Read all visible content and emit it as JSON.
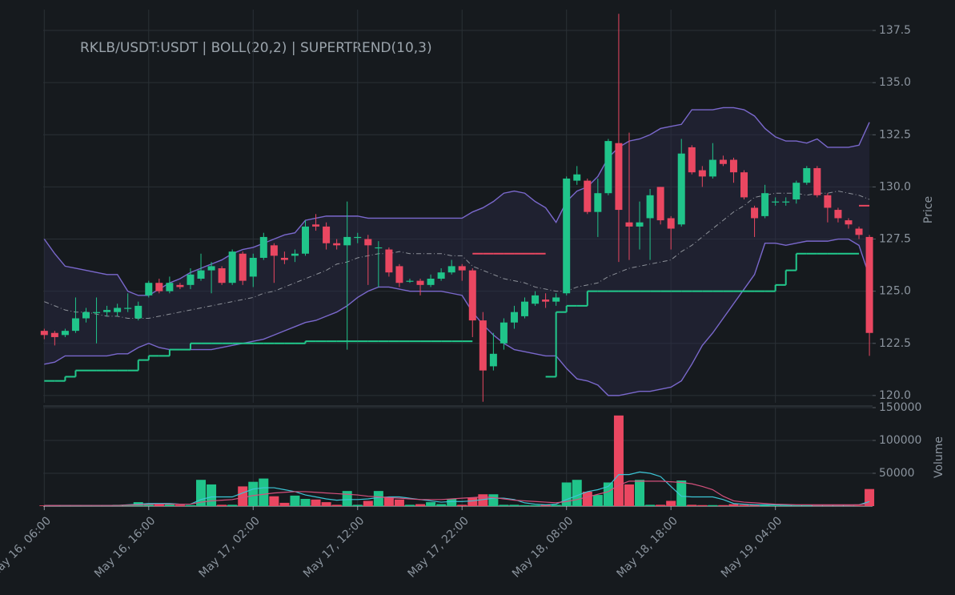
{
  "chart_data": {
    "type": "candlestick",
    "title": "RKLB/USDT:USDT | BOLL(20,2) | SUPERTREND(10,3)",
    "ylabel": "Price",
    "xlim": [
      -0.1,
      79.3
    ],
    "xticks": [
      {
        "value": 0,
        "label": "May 16, 06:00"
      },
      {
        "value": 10,
        "label": "May 16, 16:00"
      },
      {
        "value": 20,
        "label": "May 17, 02:00"
      },
      {
        "value": 30,
        "label": "May 17, 12:00"
      },
      {
        "value": 40,
        "label": "May 17, 22:00"
      },
      {
        "value": 50,
        "label": "May 18, 08:00"
      },
      {
        "value": 60,
        "label": "May 18, 18:00"
      },
      {
        "value": 70,
        "label": "May 19, 04:00"
      }
    ],
    "ylim": [
      119.65,
      138.5
    ],
    "yticks": [
      {
        "value": 120,
        "label": "120.0"
      },
      122.5,
      {
        "value": 125,
        "label": "125.0"
      },
      127.5,
      {
        "value": 130,
        "label": "130.0"
      },
      132.5,
      {
        "value": 135,
        "label": "135.0"
      },
      137.5
    ],
    "grid": true,
    "up_color": "#20c48a",
    "down_color": "#ea4761",
    "open": [
      123.1,
      123.0,
      122.9,
      123.1,
      123.7,
      124.0,
      124.0,
      124.0,
      124.2,
      123.7,
      124.8,
      125.4,
      125.0,
      125.3,
      125.3,
      125.6,
      126.0,
      126.1,
      125.4,
      126.8,
      125.7,
      126.6,
      127.2,
      126.6,
      126.7,
      126.8,
      128.2,
      128.1,
      127.3,
      127.2,
      127.6,
      127.5,
      127.1,
      127.0,
      126.2,
      125.5,
      125.5,
      125.3,
      125.6,
      125.9,
      126.2,
      126.0,
      123.6,
      121.4,
      122.5,
      123.5,
      123.8,
      124.4,
      124.6,
      124.5,
      124.9,
      130.3,
      130.3,
      128.8,
      129.7,
      132.1,
      128.3,
      128.1,
      128.5,
      130.0,
      128.5,
      128.2,
      131.9,
      130.8,
      130.5,
      131.3,
      131.3,
      130.7,
      129.0,
      128.6,
      129.3,
      129.3,
      129.4,
      130.2,
      130.9,
      129.6,
      128.9,
      128.4,
      128.0,
      127.6
    ],
    "close": [
      122.9,
      122.8,
      123.1,
      123.7,
      124.0,
      124.0,
      124.1,
      124.2,
      124.2,
      124.3,
      125.4,
      125.0,
      125.4,
      125.2,
      125.8,
      126.0,
      126.2,
      125.4,
      126.9,
      125.5,
      126.6,
      127.6,
      126.7,
      126.5,
      126.8,
      128.1,
      128.1,
      127.3,
      127.2,
      127.6,
      127.6,
      127.2,
      127.1,
      125.9,
      125.4,
      125.5,
      125.3,
      125.6,
      125.9,
      126.2,
      126.0,
      123.6,
      121.2,
      122.0,
      123.5,
      124.0,
      124.5,
      124.8,
      124.5,
      124.7,
      130.4,
      130.6,
      128.8,
      129.7,
      132.2,
      128.9,
      128.1,
      128.3,
      129.6,
      128.4,
      128.0,
      131.6,
      130.7,
      130.5,
      131.3,
      131.1,
      130.7,
      129.5,
      128.5,
      129.7,
      129.3,
      129.3,
      130.2,
      130.9,
      129.6,
      129.0,
      128.5,
      128.2,
      127.7,
      123.0
    ],
    "high": [
      123.2,
      123.1,
      123.2,
      124.7,
      124.2,
      124.7,
      124.3,
      124.4,
      124.9,
      124.5,
      125.5,
      125.6,
      125.7,
      125.4,
      126.1,
      126.8,
      126.4,
      126.2,
      127.0,
      126.9,
      126.8,
      127.8,
      127.3,
      126.9,
      127.0,
      128.4,
      128.7,
      128.3,
      127.5,
      129.3,
      127.8,
      127.7,
      127.4,
      127.1,
      126.3,
      125.6,
      125.6,
      125.8,
      126.1,
      126.5,
      126.3,
      126.1,
      124.0,
      123.0,
      123.7,
      124.3,
      124.7,
      125.0,
      124.9,
      124.9,
      130.5,
      131.0,
      130.4,
      130.4,
      132.3,
      138.3,
      132.6,
      129.3,
      129.9,
      130.0,
      128.6,
      132.3,
      132.0,
      131.0,
      132.1,
      131.5,
      131.4,
      130.8,
      129.1,
      130.1,
      129.5,
      129.5,
      130.3,
      131.0,
      131.0,
      129.7,
      129.0,
      128.5,
      128.1,
      127.7
    ],
    "low": [
      122.7,
      122.4,
      122.8,
      123.0,
      123.5,
      122.5,
      123.8,
      123.8,
      124.0,
      123.6,
      124.7,
      124.9,
      124.9,
      125.1,
      125.1,
      125.5,
      124.9,
      125.3,
      125.3,
      125.3,
      125.2,
      126.5,
      125.4,
      126.3,
      126.4,
      126.7,
      127.9,
      127.0,
      127.0,
      122.2,
      127.3,
      125.3,
      125.2,
      125.7,
      125.2,
      125.4,
      124.8,
      125.2,
      125.5,
      125.8,
      125.5,
      122.8,
      119.7,
      121.2,
      122.2,
      123.2,
      123.7,
      124.3,
      124.2,
      124.3,
      124.8,
      130.1,
      128.7,
      127.6,
      129.6,
      126.4,
      126.5,
      127.0,
      126.5,
      128.2,
      127.0,
      128.1,
      130.6,
      130.0,
      130.4,
      131.0,
      130.2,
      129.4,
      127.6,
      128.5,
      129.1,
      129.1,
      129.2,
      130.1,
      129.5,
      128.3,
      128.3,
      128.0,
      127.5,
      121.9
    ],
    "bollinger": {
      "color": "#7a68cc",
      "middle_color": "#8c9098",
      "fill": "#2a2a48",
      "upper": [
        127.5,
        126.8,
        126.2,
        126.1,
        126.0,
        125.9,
        125.8,
        125.8,
        125.0,
        124.8,
        124.8,
        125.1,
        125.4,
        125.6,
        125.9,
        126.1,
        126.3,
        126.5,
        126.8,
        127.0,
        127.1,
        127.3,
        127.5,
        127.7,
        127.8,
        128.4,
        128.5,
        128.6,
        128.6,
        128.6,
        128.6,
        128.5,
        128.5,
        128.5,
        128.5,
        128.5,
        128.5,
        128.5,
        128.5,
        128.5,
        128.5,
        128.8,
        129.0,
        129.3,
        129.7,
        129.8,
        129.7,
        129.3,
        129.0,
        128.3,
        129.3,
        129.8,
        130.0,
        130.5,
        131.4,
        131.9,
        132.2,
        132.3,
        132.5,
        132.8,
        132.9,
        133.0,
        133.7,
        133.7,
        133.7,
        133.8,
        133.8,
        133.7,
        133.4,
        132.8,
        132.4,
        132.2,
        132.2,
        132.1,
        132.3,
        131.9,
        131.9,
        131.9,
        132.0,
        133.1
      ],
      "middle": [
        124.5,
        124.3,
        124.1,
        124.0,
        124.0,
        123.9,
        123.8,
        123.8,
        123.7,
        123.7,
        123.7,
        123.8,
        123.9,
        124.0,
        124.1,
        124.2,
        124.3,
        124.4,
        124.5,
        124.6,
        124.7,
        124.9,
        125.0,
        125.2,
        125.4,
        125.6,
        125.8,
        126.0,
        126.3,
        126.4,
        126.6,
        126.7,
        126.8,
        126.8,
        126.9,
        126.8,
        126.8,
        126.8,
        126.8,
        126.7,
        126.7,
        126.2,
        126.0,
        125.8,
        125.6,
        125.5,
        125.4,
        125.2,
        125.1,
        125.0,
        125.0,
        125.2,
        125.3,
        125.4,
        125.7,
        125.9,
        126.1,
        126.2,
        126.3,
        126.4,
        126.5,
        126.9,
        127.2,
        127.6,
        128.0,
        128.4,
        128.8,
        129.1,
        129.5,
        129.6,
        129.7,
        129.7,
        129.7,
        129.6,
        129.7,
        129.7,
        129.8,
        129.7,
        129.6,
        129.4
      ],
      "lower": [
        121.5,
        121.6,
        121.9,
        121.9,
        121.9,
        121.9,
        121.9,
        122.0,
        122.0,
        122.3,
        122.5,
        122.3,
        122.2,
        122.2,
        122.2,
        122.2,
        122.2,
        122.3,
        122.4,
        122.5,
        122.6,
        122.7,
        122.9,
        123.1,
        123.3,
        123.5,
        123.6,
        123.8,
        124.0,
        124.3,
        124.7,
        125.0,
        125.2,
        125.2,
        125.1,
        125.0,
        125.0,
        125.0,
        125.0,
        124.9,
        124.8,
        124.0,
        123.4,
        122.9,
        122.5,
        122.2,
        122.1,
        122.0,
        121.9,
        121.9,
        121.3,
        120.8,
        120.7,
        120.5,
        120.0,
        120.0,
        120.1,
        120.2,
        120.2,
        120.3,
        120.4,
        120.7,
        121.5,
        122.4,
        123.0,
        123.7,
        124.4,
        125.1,
        125.8,
        127.3,
        127.3,
        127.2,
        127.3,
        127.4,
        127.4,
        127.4,
        127.5,
        127.5,
        127.2,
        125.7
      ]
    },
    "supertrend": {
      "up_color": "#22c98c",
      "down_color": "#ea4761",
      "up": [
        120.7,
        120.7,
        120.9,
        121.2,
        121.2,
        121.2,
        121.2,
        121.2,
        121.2,
        121.7,
        121.9,
        121.9,
        122.2,
        122.2,
        122.5,
        122.5,
        122.5,
        122.5,
        122.5,
        122.5,
        122.5,
        122.5,
        122.5,
        122.5,
        122.5,
        122.6,
        122.6,
        122.6,
        122.6,
        122.6,
        122.6,
        122.6,
        122.6,
        122.6,
        122.6,
        122.6,
        122.6,
        122.6,
        122.6,
        122.6,
        122.6,
        null,
        null,
        null,
        null,
        null,
        null,
        null,
        120.9,
        124.0,
        124.3,
        124.3,
        125.0,
        125.0,
        125.0,
        125.0,
        125.0,
        125.0,
        125.0,
        125.0,
        125.0,
        125.0,
        125.0,
        125.0,
        125.0,
        125.0,
        125.0,
        125.0,
        125.0,
        125.0,
        125.3,
        126.0,
        126.8,
        126.8,
        126.8,
        126.8,
        126.8,
        126.8,
        null,
        null
      ],
      "down": [
        null,
        null,
        null,
        null,
        null,
        null,
        null,
        null,
        null,
        null,
        null,
        null,
        null,
        null,
        null,
        null,
        null,
        null,
        null,
        null,
        null,
        null,
        null,
        null,
        null,
        null,
        null,
        null,
        null,
        null,
        null,
        null,
        null,
        null,
        null,
        null,
        null,
        null,
        null,
        null,
        null,
        126.8,
        126.8,
        126.8,
        126.8,
        126.8,
        126.8,
        126.8,
        null,
        null,
        null,
        null,
        null,
        null,
        null,
        null,
        null,
        null,
        null,
        null,
        null,
        null,
        null,
        null,
        null,
        null,
        null,
        null,
        null,
        null,
        null,
        null,
        null,
        null,
        null,
        null,
        null,
        null,
        129.1,
        null
      ]
    },
    "volume": {
      "ylabel": "Volume",
      "ylim": [
        0,
        150000
      ],
      "yticks": [
        50000,
        100000,
        150000
      ],
      "values": [
        1000,
        1000,
        1000,
        1000,
        1000,
        1000,
        1500,
        2000,
        2000,
        6000,
        4000,
        3000,
        3000,
        2000,
        1500,
        40000,
        33000,
        2000,
        2000,
        30000,
        37000,
        42000,
        15000,
        5000,
        16000,
        11000,
        10000,
        6000,
        2000,
        23000,
        2000,
        8000,
        23000,
        13000,
        10000,
        2000,
        3000,
        6000,
        3000,
        11000,
        2000,
        13000,
        18000,
        18000,
        2000,
        2000,
        1500,
        1500,
        2000,
        2000,
        36000,
        40000,
        22000,
        17000,
        36000,
        138000,
        33000,
        40000,
        2000,
        2000,
        8000,
        39000,
        2000,
        1500,
        1500,
        1500,
        3000,
        2000,
        2000,
        2000,
        1000,
        1000,
        1000,
        1500,
        1000,
        1000,
        1000,
        1000,
        1000,
        26000
      ],
      "ma": [
        {
          "color": "#3cc6d6",
          "values": [
            1000,
            1000,
            1000,
            1000,
            1000,
            1000,
            1000,
            1000,
            2000,
            3000,
            4000,
            4000,
            4000,
            3000,
            3000,
            10000,
            14000,
            14000,
            14000,
            20000,
            26000,
            28000,
            28000,
            25000,
            22000,
            17000,
            14000,
            11000,
            9000,
            10000,
            10000,
            11000,
            13000,
            14000,
            14000,
            12000,
            10000,
            8000,
            6000,
            7000,
            7000,
            8000,
            10000,
            12000,
            12000,
            10000,
            5000,
            3000,
            2000,
            3000,
            10000,
            16000,
            22000,
            25000,
            30000,
            48000,
            48000,
            52000,
            50000,
            45000,
            30000,
            15000,
            14000,
            14000,
            14000,
            10000,
            4000,
            3000,
            2000,
            2000,
            2000,
            1500,
            1500,
            1500,
            1500,
            1500,
            1500,
            1500,
            2000,
            7000
          ]
        },
        {
          "color": "#d4507c",
          "values": [
            1000,
            1000,
            1000,
            1000,
            1000,
            1000,
            1000,
            1000,
            1500,
            2000,
            2500,
            3000,
            3000,
            3000,
            3000,
            6000,
            8000,
            9000,
            10000,
            13000,
            16000,
            18000,
            20000,
            21000,
            22000,
            22000,
            21000,
            20000,
            19000,
            18000,
            17000,
            15000,
            14000,
            13000,
            12000,
            11000,
            10000,
            10000,
            10000,
            11000,
            12000,
            13000,
            14000,
            13000,
            11000,
            9000,
            8000,
            7000,
            6000,
            5000,
            7000,
            10000,
            14000,
            18000,
            22000,
            32000,
            38000,
            38000,
            38000,
            38000,
            37000,
            36000,
            34000,
            30000,
            25000,
            15000,
            8000,
            6000,
            5000,
            4000,
            3000,
            2500,
            2000,
            2000,
            2000,
            2000,
            2000,
            2000,
            2000,
            4000
          ]
        }
      ]
    }
  }
}
